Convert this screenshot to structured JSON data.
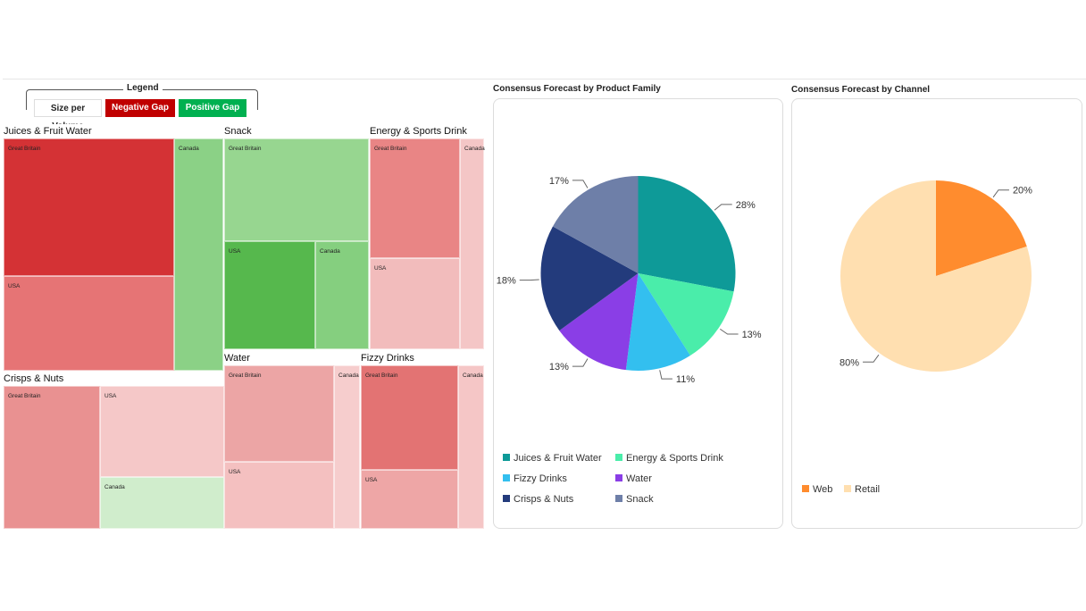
{
  "legend": {
    "title": "Legend",
    "size_label": "Size per Volume",
    "negative_label": "Negative Gap",
    "positive_label": "Positive Gap",
    "negative_color": "#c00000",
    "positive_color": "#00b050"
  },
  "treemap": {
    "groups": [
      {
        "name": "Juices & Fruit Water",
        "cells": [
          {
            "label": "Great Britain",
            "color": "#d43235"
          },
          {
            "label": "USA",
            "color": "#e67475"
          },
          {
            "label": "Canada",
            "color": "#8bd186"
          }
        ]
      },
      {
        "name": "Snack",
        "cells": [
          {
            "label": "Great Britain",
            "color": "#97d690"
          },
          {
            "label": "USA",
            "color": "#56b84d"
          },
          {
            "label": "Canada",
            "color": "#85cf7f"
          }
        ]
      },
      {
        "name": "Energy & Sports Drink",
        "cells": [
          {
            "label": "Great Britain",
            "color": "#e98585"
          },
          {
            "label": "USA",
            "color": "#f2bcbc"
          },
          {
            "label": "Canada",
            "color": "#f4c6c6"
          }
        ]
      },
      {
        "name": "Crisps & Nuts",
        "cells": [
          {
            "label": "Great Britain",
            "color": "#e99191"
          },
          {
            "label": "USA",
            "color": "#f5c8c8"
          },
          {
            "label": "Canada",
            "color": "#d0edcc"
          }
        ]
      },
      {
        "name": "Water",
        "cells": [
          {
            "label": "Great Britain",
            "color": "#eca5a5"
          },
          {
            "label": "USA",
            "color": "#f4c0c0"
          },
          {
            "label": "Canada",
            "color": "#f6cdcd"
          }
        ]
      },
      {
        "name": "Fizzy Drinks",
        "cells": [
          {
            "label": "Great Britain",
            "color": "#e37373"
          },
          {
            "label": "USA",
            "color": "#eea6a6"
          },
          {
            "label": "Canada",
            "color": "#f5c6c6"
          }
        ]
      }
    ]
  },
  "pie_family": {
    "title": "Consensus Forecast by Product Family",
    "legend": [
      "Juices & Fruit Water",
      "Energy & Sports Drink",
      "Fizzy Drinks",
      "Water",
      "Crisps & Nuts",
      "Snack"
    ]
  },
  "pie_channel": {
    "title": "Consensus Forecast by Channel",
    "legend": [
      "Web",
      "Retail"
    ]
  },
  "chart_data": [
    {
      "type": "pie",
      "title": "Consensus Forecast by Product Family",
      "categories": [
        "Juices & Fruit Water",
        "Energy & Sports Drink",
        "Fizzy Drinks",
        "Water",
        "Crisps & Nuts",
        "Snack"
      ],
      "values": [
        28,
        13,
        11,
        13,
        18,
        17
      ],
      "labels": [
        "28%",
        "13%",
        "11%",
        "13%",
        "18%",
        "17%"
      ],
      "colors": [
        "#0e9a98",
        "#4aedaa",
        "#33bfef",
        "#8a3ee6",
        "#233b7c",
        "#6e7fa8"
      ],
      "legend": "bottom"
    },
    {
      "type": "pie",
      "title": "Consensus Forecast by Channel",
      "categories": [
        "Web",
        "Retail"
      ],
      "values": [
        20,
        80
      ],
      "labels": [
        "20%",
        "80%"
      ],
      "colors": [
        "#ff8c2e",
        "#ffdfb0"
      ],
      "legend": "bottom"
    }
  ]
}
